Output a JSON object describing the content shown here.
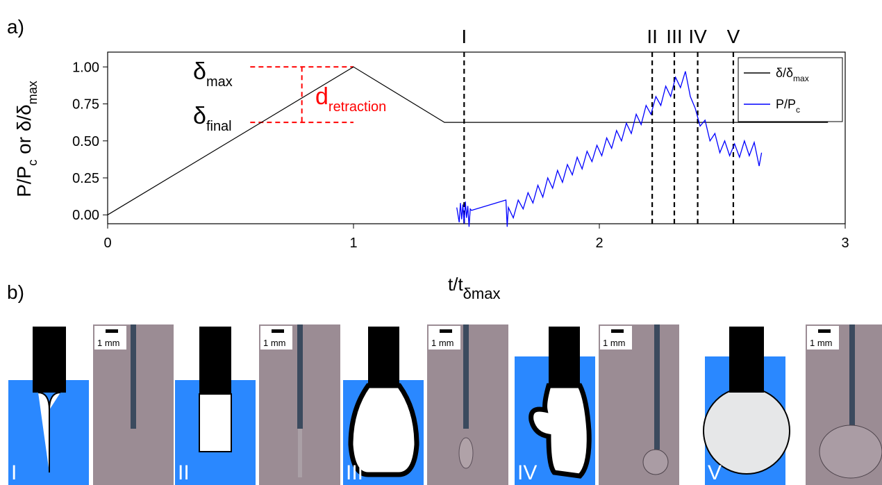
{
  "chart_data": {
    "type": "line",
    "panel_label": "a)",
    "xlabel": [
      "t/t",
      "δmax"
    ],
    "ylabel": [
      "P/P",
      "c",
      " or δ/δ",
      "max"
    ],
    "xlim": [
      0,
      3
    ],
    "ylim": [
      -0.06,
      1.1
    ],
    "xticks": [
      0,
      1,
      2,
      3
    ],
    "yticks": [
      {
        "value": 0,
        "label": "0.00"
      },
      {
        "value": 0.25,
        "label": "0.25"
      },
      {
        "value": 0.5,
        "label": "0.50"
      },
      {
        "value": 0.75,
        "label": "0.75"
      },
      {
        "value": 1,
        "label": "1.00"
      }
    ],
    "legend": "upper right",
    "series": [
      {
        "name": [
          "δ/δ",
          "max"
        ],
        "color": "#000000",
        "x": [
          0,
          1,
          1.37,
          2.93
        ],
        "values": [
          0,
          1,
          0.625,
          0.625
        ]
      },
      {
        "name": [
          "P/P",
          "c"
        ],
        "color": "#0000ff",
        "x": [
          1.42,
          1.43,
          1.435,
          1.44,
          1.445,
          1.45,
          1.455,
          1.46,
          1.465,
          1.47,
          1.475,
          1.48,
          1.62,
          1.625,
          1.63,
          1.65,
          1.67,
          1.69,
          1.71,
          1.73,
          1.75,
          1.77,
          1.79,
          1.81,
          1.83,
          1.85,
          1.87,
          1.89,
          1.91,
          1.93,
          1.95,
          1.97,
          1.99,
          2.01,
          2.03,
          2.05,
          2.07,
          2.09,
          2.11,
          2.13,
          2.15,
          2.17,
          2.19,
          2.21,
          2.23,
          2.25,
          2.27,
          2.29,
          2.31,
          2.33,
          2.35,
          2.37,
          2.39,
          2.41,
          2.43,
          2.45,
          2.47,
          2.49,
          2.51,
          2.53,
          2.55,
          2.57,
          2.59,
          2.61,
          2.63,
          2.65,
          2.66
        ],
        "values": [
          0.05,
          -0.05,
          0.08,
          -0.03,
          0.07,
          -0.06,
          0.09,
          -0.02,
          0.06,
          -0.08,
          0.04,
          0.03,
          0.1,
          -0.08,
          0.05,
          -0.02,
          0.1,
          0.04,
          0.15,
          0.08,
          0.2,
          0.12,
          0.25,
          0.18,
          0.3,
          0.22,
          0.34,
          0.27,
          0.39,
          0.31,
          0.43,
          0.36,
          0.47,
          0.4,
          0.52,
          0.45,
          0.57,
          0.5,
          0.62,
          0.55,
          0.68,
          0.61,
          0.74,
          0.68,
          0.8,
          0.74,
          0.87,
          0.8,
          0.93,
          0.86,
          0.97,
          0.8,
          0.72,
          0.6,
          0.64,
          0.5,
          0.55,
          0.42,
          0.5,
          0.4,
          0.48,
          0.39,
          0.5,
          0.4,
          0.49,
          0.33,
          0.42
        ]
      }
    ],
    "markers": [
      {
        "x": 1.45,
        "label": "I"
      },
      {
        "x": 2.215,
        "label": "II"
      },
      {
        "x": 2.305,
        "label": "III"
      },
      {
        "x": 2.4,
        "label": "IV"
      },
      {
        "x": 2.545,
        "label": "V"
      }
    ],
    "retraction": {
      "x": 0.79,
      "x_from": 0.58,
      "x_to": 1.0,
      "y_max": 1,
      "y_final": 0.625
    },
    "annotations": [
      {
        "text": "δ",
        "sub": "max"
      },
      {
        "text": "δ",
        "sub": "final"
      },
      {
        "text": "d",
        "sub": "retraction"
      }
    ]
  },
  "panel_b": {
    "label": "b)",
    "frames": [
      {
        "label": "I",
        "scale": "1 mm"
      },
      {
        "label": "II",
        "scale": "1 mm"
      },
      {
        "label": "III",
        "scale": "1 mm"
      },
      {
        "label": "IV",
        "scale": "1 mm"
      },
      {
        "label": "V",
        "scale": "1 mm"
      }
    ]
  }
}
